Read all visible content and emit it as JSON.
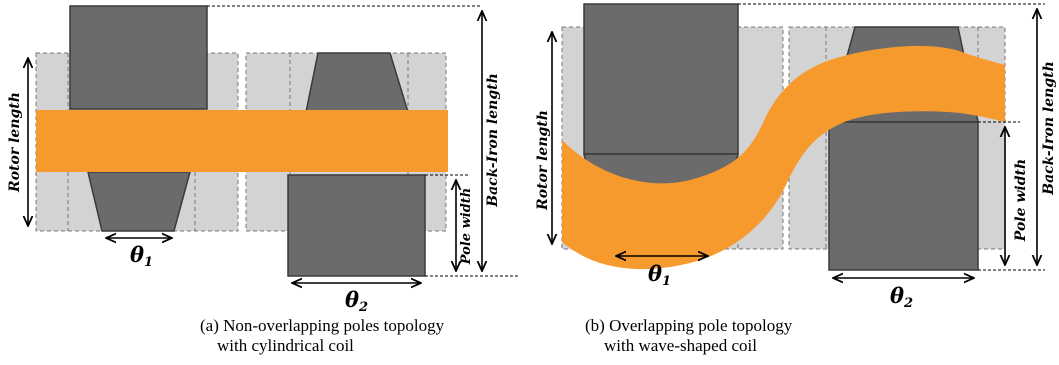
{
  "labels": {
    "rotor_length": "Rotor length",
    "pole_width": "Pole width",
    "back_iron_length": "Back-Iron length",
    "theta1_base": "θ",
    "theta1_sub": "1",
    "theta2_base": "θ",
    "theta2_sub": "2"
  },
  "captions": {
    "a_line1": "(a) Non-overlapping poles topology",
    "a_line2": "with cylindrical coil",
    "b_line1": "(b) Overlapping pole topology",
    "b_line2": "with wave-shaped coil"
  },
  "colors": {
    "pole": "#6b6b6b",
    "pole_edge": "#3a3a3a",
    "back_iron": "#d3d3d3",
    "coil": "#f79a2e"
  }
}
